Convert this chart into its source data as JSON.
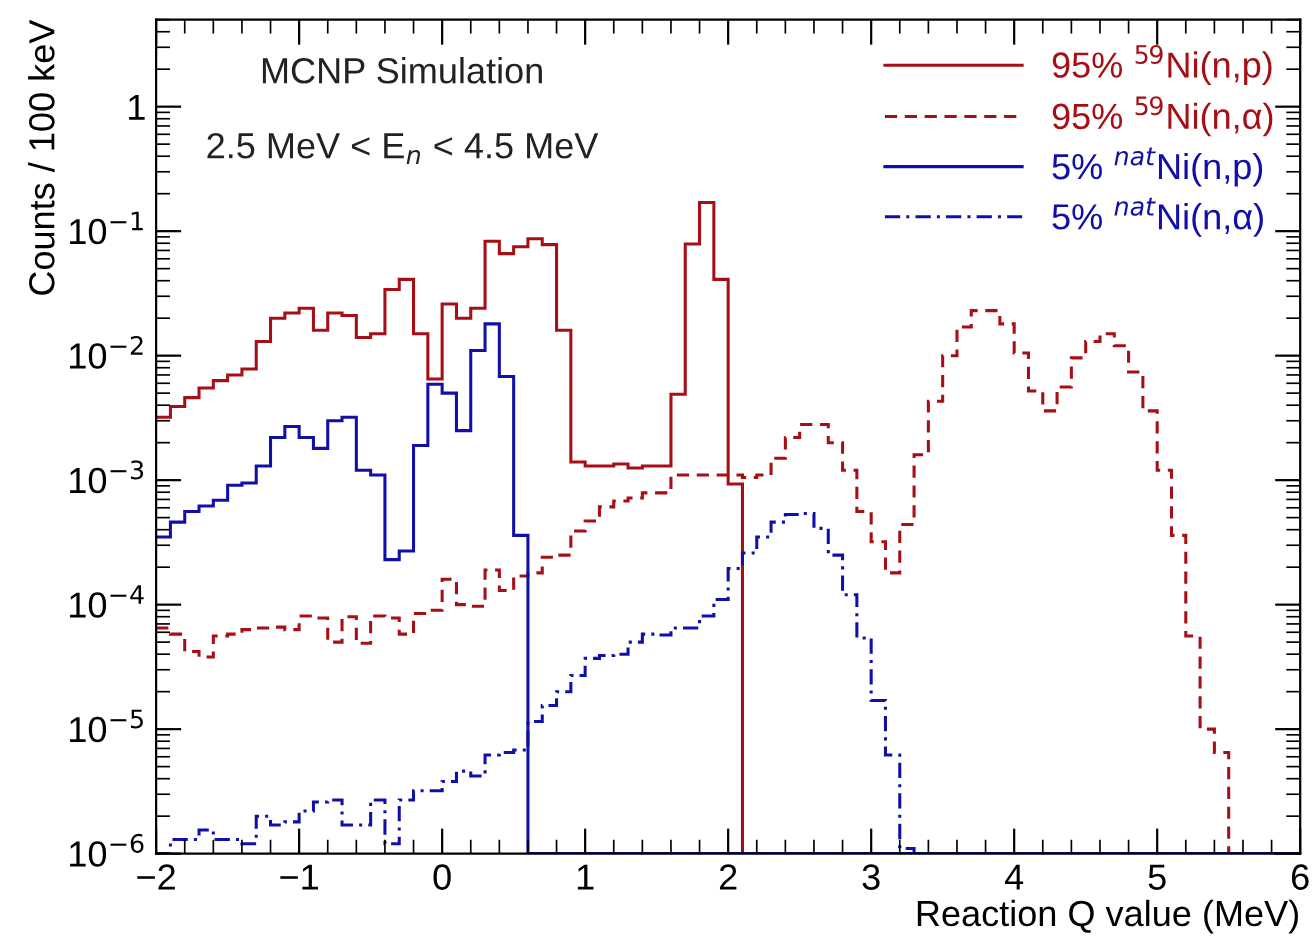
{
  "chart_data": {
    "type": "histogram",
    "xlabel": "Reaction Q value (MeV)",
    "ylabel": "Counts / 100 keV",
    "annotations": [
      "MCNP Simulation",
      "2.5 MeV < E$_{n}$ < 4.5 MeV"
    ],
    "log": "y",
    "legend": "top right",
    "grid": false,
    "xlim": [
      -2,
      6
    ],
    "xticks": [
      {
        "value": -2,
        "label": "−2"
      },
      {
        "value": -1,
        "label": "−1"
      },
      0,
      1,
      2,
      3,
      4,
      5,
      6
    ],
    "ylim": [
      1e-06,
      5
    ],
    "yticks": [
      {
        "value": 1e-06,
        "label": "10$^{−6}$"
      },
      {
        "value": 1e-05,
        "label": "10$^{−5}$"
      },
      {
        "value": 0.0001,
        "label": "10$^{−4}$"
      },
      {
        "value": 0.001,
        "label": "10$^{−3}$"
      },
      {
        "value": 0.01,
        "label": "10$^{−2}$"
      },
      {
        "value": 0.1,
        "label": "10$^{−1}$"
      },
      1
    ],
    "bins": [
      -2.0,
      -1.9,
      -1.8,
      -1.7,
      -1.6,
      -1.5,
      -1.4,
      -1.3,
      -1.2,
      -1.1,
      -1.0,
      -0.9,
      -0.8,
      -0.7,
      -0.6,
      -0.5,
      -0.4,
      -0.3,
      -0.2,
      -0.1,
      0.0,
      0.1,
      0.2,
      0.3,
      0.4,
      0.5,
      0.6,
      0.7,
      0.8,
      0.9,
      1.0,
      1.1,
      1.2,
      1.3,
      1.4,
      1.5,
      1.6,
      1.7,
      1.8,
      1.9,
      2.0,
      2.1,
      2.2,
      2.3,
      2.4,
      2.5,
      2.6,
      2.7,
      2.8,
      2.9,
      3.0,
      3.1,
      3.2,
      3.3,
      3.4,
      3.5,
      3.6,
      3.7,
      3.8,
      3.9,
      4.0,
      4.1,
      4.2,
      4.3,
      4.4,
      4.5,
      4.6,
      4.7,
      4.8,
      4.9,
      5.0,
      5.1,
      5.2,
      5.3,
      5.4,
      5.5,
      5.6,
      5.7,
      5.8,
      5.9,
      6.0
    ],
    "series": [
      {
        "name": "95% $^{59}$Ni(n,p)",
        "color": "#a50f15",
        "line_style": "solid",
        "values": [
          0.0032,
          0.0039,
          0.0046,
          0.0055,
          0.0063,
          0.007,
          0.0078,
          0.013,
          0.02,
          0.022,
          0.024,
          0.016,
          0.022,
          0.021,
          0.014,
          0.015,
          0.034,
          0.041,
          0.015,
          0.0065,
          0.026,
          0.02,
          0.024,
          0.083,
          0.066,
          0.075,
          0.087,
          0.078,
          0.016,
          0.0014,
          0.0013,
          0.0013,
          0.00135,
          0.00125,
          0.0013,
          0.0013,
          0.0049,
          0.079,
          0.17,
          0.041,
          0.00093,
          null,
          null,
          null,
          null,
          null,
          null,
          null,
          null,
          null,
          null,
          null,
          null,
          null,
          null,
          null,
          null,
          null,
          null,
          null,
          null,
          null,
          null,
          null,
          null,
          null,
          null,
          null,
          null,
          null,
          null,
          null,
          null,
          null,
          null,
          null,
          null,
          null,
          null,
          null
        ]
      },
      {
        "name": "95% $^{59}$Ni(n,α)",
        "color": "#a50f15",
        "line_style": "dashed",
        "values": [
          6.5e-05,
          5.8e-05,
          4.2e-05,
          3.8e-05,
          5.6e-05,
          5.8e-05,
          6.3e-05,
          6.5e-05,
          6.6e-05,
          6.3e-05,
          8.1e-05,
          7.8e-05,
          5e-05,
          8e-05,
          4.9e-05,
          8.1e-05,
          7.8e-05,
          5.8e-05,
          8.5e-05,
          9e-05,
          0.00016,
          0.0001,
          9.7e-05,
          0.00019,
          0.00013,
          0.00017,
          0.00018,
          0.00024,
          0.00025,
          0.00039,
          0.00047,
          0.00061,
          0.00068,
          0.00072,
          0.00079,
          0.00079,
          0.0011,
          0.0011,
          0.0011,
          0.0011,
          0.0011,
          0.00105,
          0.0011,
          0.0015,
          0.0022,
          0.0028,
          0.0028,
          0.002,
          0.0012,
          0.00056,
          0.00032,
          0.00018,
          0.00044,
          0.0016,
          0.0043,
          0.01,
          0.017,
          0.023,
          0.023,
          0.018,
          0.0105,
          0.0052,
          0.0036,
          0.0056,
          0.0096,
          0.013,
          0.015,
          0.012,
          0.0074,
          0.0036,
          0.0012,
          0.00036,
          5.6e-05,
          1e-05,
          6.5e-06,
          null,
          null,
          null,
          null,
          null
        ]
      },
      {
        "name": "5% $^{nat}$Ni(n,p)",
        "color": "#1010a8",
        "line_style": "solid",
        "values": [
          0.00035,
          0.00046,
          0.00056,
          0.00062,
          0.00069,
          0.00091,
          0.00095,
          0.0013,
          0.0022,
          0.0027,
          0.0022,
          0.0018,
          0.003,
          0.0032,
          0.0012,
          0.0011,
          0.00023,
          0.00027,
          0.0019,
          0.0059,
          0.005,
          0.0025,
          0.011,
          0.018,
          0.0068,
          0.00036,
          null,
          null,
          null,
          null,
          null,
          null,
          null,
          null,
          null,
          null,
          null,
          null,
          null,
          null,
          null,
          null,
          null,
          null,
          null,
          null,
          null,
          null,
          null,
          null,
          null,
          null,
          null,
          null,
          null,
          null,
          null,
          null,
          null,
          null,
          null,
          null,
          null,
          null,
          null,
          null,
          null,
          null,
          null,
          null,
          null,
          null,
          null,
          null,
          null,
          null,
          null,
          null,
          null,
          null
        ]
      },
      {
        "name": "5% $^{nat}$Ni(n,α)",
        "color": "#1010a8",
        "line_style": "dashdot",
        "values": [
          null,
          1.3e-06,
          1.3e-06,
          1.55e-06,
          1.3e-06,
          1.3e-06,
          1.2e-06,
          2e-06,
          1.7e-06,
          1.8e-06,
          2.2e-06,
          2.6e-06,
          2.7e-06,
          1.7e-06,
          1.7e-06,
          2.7e-06,
          1.2e-06,
          2.7e-06,
          3.2e-06,
          3.2e-06,
          3.8e-06,
          4.6e-06,
          4.2e-06,
          6.2e-06,
          6.5e-06,
          6.8e-06,
          1.15e-05,
          1.55e-05,
          2e-05,
          2.7e-05,
          3.7e-05,
          3.9e-05,
          4e-05,
          5e-05,
          5.8e-05,
          5.7e-05,
          6.5e-05,
          6.5e-05,
          8.1e-05,
          0.00011,
          0.000195,
          0.00026,
          0.00035,
          0.00046,
          0.00053,
          0.00054,
          0.00041,
          0.00025,
          0.00012,
          5.4e-05,
          1.7e-05,
          6.2e-06,
          1.1e-06,
          null,
          null,
          null,
          null,
          null,
          null,
          null,
          null,
          null,
          null,
          null,
          null,
          null,
          null,
          null,
          null,
          null,
          null,
          null,
          null,
          null,
          null,
          null,
          null,
          null,
          null,
          null
        ]
      }
    ]
  }
}
